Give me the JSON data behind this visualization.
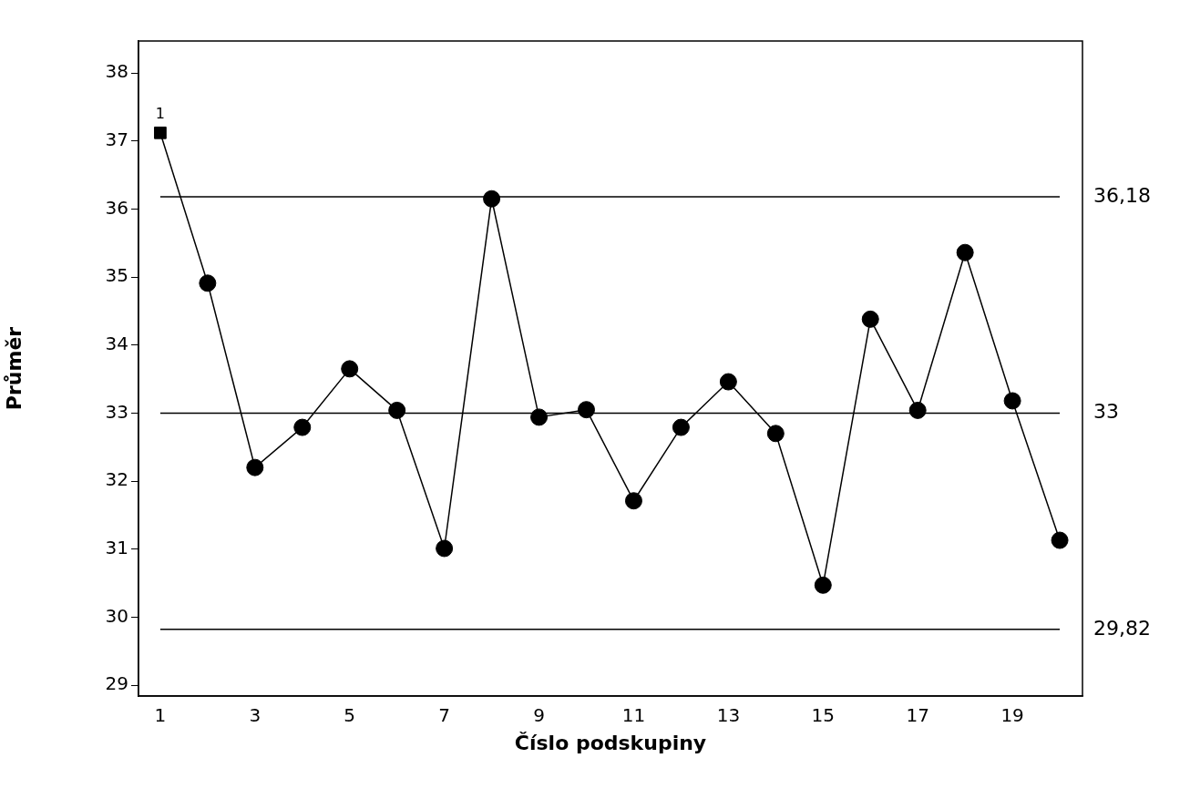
{
  "chart_data": {
    "type": "line",
    "xlabel": "Číslo podskupiny",
    "ylabel": "Průměr",
    "x": [
      1,
      2,
      3,
      4,
      5,
      6,
      7,
      8,
      9,
      10,
      11,
      12,
      13,
      14,
      15,
      16,
      17,
      18,
      19,
      20
    ],
    "series": [
      {
        "type": "line",
        "color": "#000000",
        "marker": "none",
        "values": [
          37.12,
          34.91,
          32.2,
          32.79,
          33.65,
          33.04,
          31.01,
          36.15,
          32.94,
          33.05,
          31.71,
          32.79,
          33.46,
          32.7,
          30.47,
          34.38,
          33.04,
          35.36,
          33.18,
          31.13
        ]
      },
      {
        "type": "scatter",
        "color": "#000000",
        "marker": "circle",
        "x": [
          2,
          3,
          4,
          5,
          6,
          7,
          8,
          9,
          10,
          11,
          12,
          13,
          14,
          15,
          16,
          17,
          18,
          19,
          20
        ],
        "values": [
          34.91,
          32.2,
          32.79,
          33.65,
          33.04,
          31.01,
          36.15,
          32.94,
          33.05,
          31.71,
          32.79,
          33.46,
          32.7,
          30.47,
          34.38,
          33.04,
          35.36,
          33.18,
          31.13
        ]
      },
      {
        "type": "scatter",
        "color": "#000000",
        "marker": "square",
        "x": [
          1
        ],
        "values": [
          37.12
        ]
      }
    ],
    "xlim": [
      0.54,
      20.48
    ],
    "xticks": [
      1,
      3,
      5,
      7,
      9,
      11,
      13,
      15,
      17,
      19
    ],
    "ylim": [
      28.84,
      38.47
    ],
    "yticks": [
      29,
      30,
      31,
      32,
      33,
      34,
      35,
      36,
      37,
      38
    ],
    "ref_lines": [
      {
        "axis": "y",
        "value": 36.18,
        "label": "36,18",
        "color": "#000000"
      },
      {
        "axis": "y",
        "value": 33,
        "label": "33",
        "color": "#000000"
      },
      {
        "axis": "y",
        "value": 29.82,
        "label": "29,82",
        "color": "#000000"
      }
    ],
    "annotations": [
      {
        "text": "1",
        "x": 1,
        "y": 37.12
      }
    ],
    "grid": false,
    "legend": false
  }
}
